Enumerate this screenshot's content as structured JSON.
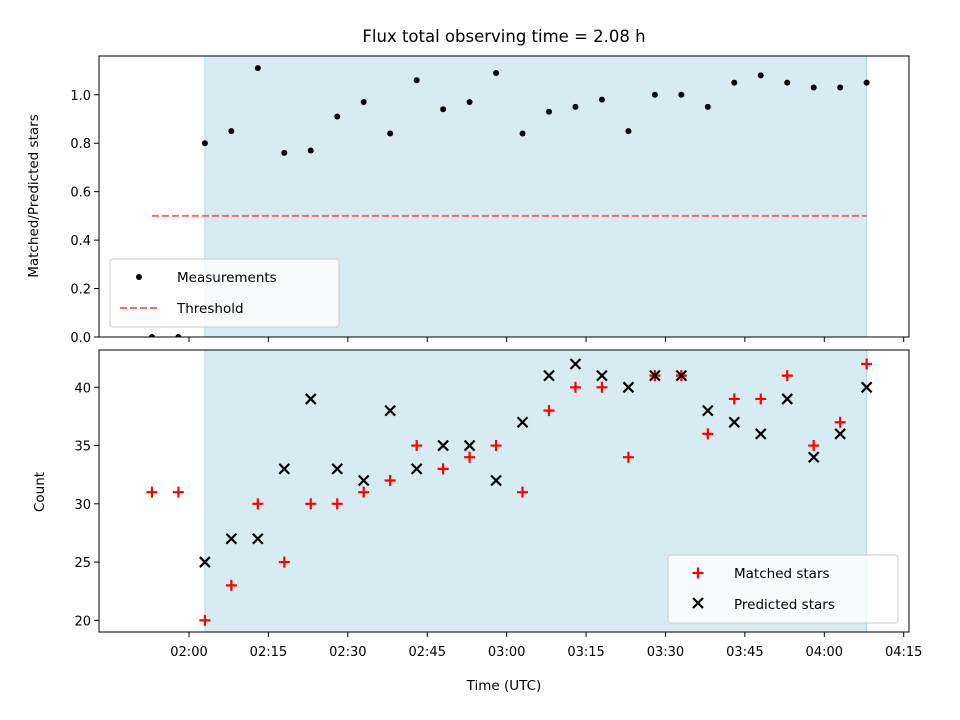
{
  "chart_data": [
    {
      "type": "scatter",
      "title": "Flux total observing time = 2.08 h",
      "xlabel": "",
      "ylabel": "Matched/Predicted stars",
      "ylim": [
        0,
        1.16
      ],
      "yticks": [
        "0.0",
        "0.2",
        "0.4",
        "0.6",
        "0.8",
        "1.0"
      ],
      "xlim": [
        "01:43",
        "04:16"
      ],
      "shaded_span": [
        "02:03",
        "04:08"
      ],
      "series": [
        {
          "name": "Measurements",
          "marker": "dot",
          "color": "#000000",
          "points": [
            [
              "01:53",
              0.0
            ],
            [
              "01:58",
              0.0
            ],
            [
              "02:03",
              0.8
            ],
            [
              "02:08",
              0.85
            ],
            [
              "02:13",
              1.11
            ],
            [
              "02:18",
              0.76
            ],
            [
              "02:23",
              0.77
            ],
            [
              "02:28",
              0.91
            ],
            [
              "02:33",
              0.97
            ],
            [
              "02:38",
              0.84
            ],
            [
              "02:43",
              1.06
            ],
            [
              "02:48",
              0.94
            ],
            [
              "02:53",
              0.97
            ],
            [
              "02:58",
              1.09
            ],
            [
              "03:03",
              0.84
            ],
            [
              "03:08",
              0.93
            ],
            [
              "03:13",
              0.95
            ],
            [
              "03:18",
              0.98
            ],
            [
              "03:23",
              0.85
            ],
            [
              "03:28",
              1.0
            ],
            [
              "03:33",
              1.0
            ],
            [
              "03:38",
              0.95
            ],
            [
              "03:43",
              1.05
            ],
            [
              "03:48",
              1.08
            ],
            [
              "03:53",
              1.05
            ],
            [
              "03:58",
              1.03
            ],
            [
              "04:03",
              1.03
            ],
            [
              "04:08",
              1.05
            ]
          ]
        },
        {
          "name": "Threshold",
          "type": "line",
          "style": "dashed",
          "color": "#ff6b6b",
          "points": [
            [
              "01:53",
              0.5
            ],
            [
              "04:08",
              0.5
            ]
          ]
        }
      ],
      "legend": "lower-left"
    },
    {
      "type": "scatter",
      "title": "",
      "xlabel": "Time (UTC)",
      "ylabel": "Count",
      "ylim": [
        19,
        43.2
      ],
      "yticks": [
        "20",
        "25",
        "30",
        "35",
        "40"
      ],
      "xlim": [
        "01:43",
        "04:16"
      ],
      "xticks": [
        "02:00",
        "02:15",
        "02:30",
        "02:45",
        "03:00",
        "03:15",
        "03:30",
        "03:45",
        "04:00",
        "04:15"
      ],
      "shaded_span": [
        "02:03",
        "04:08"
      ],
      "series": [
        {
          "name": "Matched stars",
          "marker": "plus",
          "color": "#ff0000",
          "points": [
            [
              "01:53",
              31
            ],
            [
              "01:58",
              31
            ],
            [
              "02:03",
              20
            ],
            [
              "02:08",
              23
            ],
            [
              "02:13",
              30
            ],
            [
              "02:18",
              25
            ],
            [
              "02:23",
              30
            ],
            [
              "02:28",
              30
            ],
            [
              "02:33",
              31
            ],
            [
              "02:38",
              32
            ],
            [
              "02:43",
              35
            ],
            [
              "02:48",
              33
            ],
            [
              "02:53",
              34
            ],
            [
              "02:58",
              35
            ],
            [
              "03:03",
              31
            ],
            [
              "03:08",
              38
            ],
            [
              "03:13",
              40
            ],
            [
              "03:18",
              40
            ],
            [
              "03:23",
              34
            ],
            [
              "03:28",
              41
            ],
            [
              "03:33",
              41
            ],
            [
              "03:38",
              36
            ],
            [
              "03:43",
              39
            ],
            [
              "03:48",
              39
            ],
            [
              "03:53",
              41
            ],
            [
              "03:58",
              35
            ],
            [
              "04:03",
              37
            ],
            [
              "04:08",
              42
            ]
          ]
        },
        {
          "name": "Predicted stars",
          "marker": "x",
          "color": "#000000",
          "points": [
            [
              "02:03",
              25
            ],
            [
              "02:08",
              27
            ],
            [
              "02:13",
              27
            ],
            [
              "02:18",
              33
            ],
            [
              "02:23",
              39
            ],
            [
              "02:28",
              33
            ],
            [
              "02:33",
              32
            ],
            [
              "02:38",
              38
            ],
            [
              "02:43",
              33
            ],
            [
              "02:48",
              35
            ],
            [
              "02:53",
              35
            ],
            [
              "02:58",
              32
            ],
            [
              "03:03",
              37
            ],
            [
              "03:08",
              41
            ],
            [
              "03:13",
              42
            ],
            [
              "03:18",
              41
            ],
            [
              "03:23",
              40
            ],
            [
              "03:28",
              41
            ],
            [
              "03:33",
              41
            ],
            [
              "03:38",
              38
            ],
            [
              "03:43",
              37
            ],
            [
              "03:48",
              36
            ],
            [
              "03:53",
              39
            ],
            [
              "03:58",
              34
            ],
            [
              "04:03",
              36
            ],
            [
              "04:08",
              40
            ]
          ]
        }
      ],
      "legend": "lower-right"
    }
  ],
  "colors": {
    "shade": "#add8e6",
    "axis": "#000000"
  }
}
